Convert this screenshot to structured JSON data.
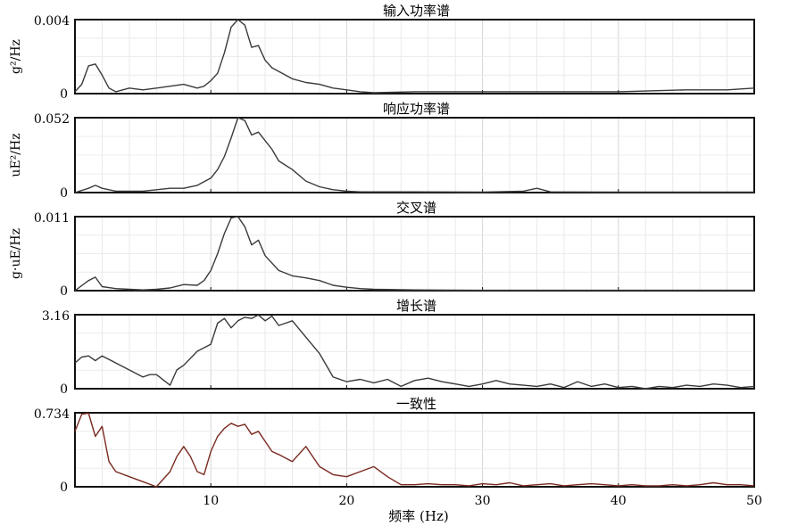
{
  "figure": {
    "xlabel": "频率 (Hz)"
  },
  "chart_data": [
    {
      "type": "line",
      "title": "输入功率谱",
      "ylabel_html": "g²/Hz",
      "ylabel": "g2/Hz",
      "ylim": [
        0,
        0.004
      ],
      "ytick_labels": [
        "0.004",
        "0"
      ],
      "xlim": [
        0,
        50
      ],
      "x_ticks": [
        10,
        20,
        30,
        40,
        50
      ],
      "grid": true,
      "color": "#3a3a3a",
      "x": [
        0,
        0.5,
        1,
        1.5,
        2,
        2.5,
        3,
        4,
        5,
        6,
        7,
        8,
        8.5,
        9,
        9.5,
        10,
        10.5,
        11,
        11.5,
        12,
        12.5,
        13,
        13.5,
        14,
        14.5,
        15,
        16,
        17,
        18,
        19,
        20,
        21,
        22,
        25,
        30,
        35,
        40,
        45,
        48,
        50
      ],
      "y": [
        0.0001,
        0.0005,
        0.0015,
        0.0016,
        0.001,
        0.0003,
        0.0001,
        0.0003,
        0.0002,
        0.0003,
        0.0004,
        0.0005,
        0.0004,
        0.0003,
        0.0004,
        0.0007,
        0.0011,
        0.0022,
        0.0036,
        0.004,
        0.0037,
        0.0025,
        0.0026,
        0.0018,
        0.0014,
        0.0012,
        0.0008,
        0.0006,
        0.0005,
        0.0003,
        0.0002,
        0.0001,
        5e-05,
        0.0001,
        0.0001,
        0.0001,
        0.0001,
        0.0002,
        0.0002,
        0.0003
      ]
    },
    {
      "type": "line",
      "title": "响应功率谱",
      "ylabel_html": "uE²/Hz",
      "ylabel": "uE2/Hz",
      "ylim": [
        0,
        0.052
      ],
      "ytick_labels": [
        "0.052",
        "0"
      ],
      "xlim": [
        0,
        50
      ],
      "x_ticks": [
        10,
        20,
        30,
        40,
        50
      ],
      "grid": true,
      "color": "#3a3a3a",
      "x": [
        0,
        1,
        1.5,
        2,
        3,
        4,
        5,
        6,
        7,
        8,
        9,
        10,
        10.5,
        11,
        11.5,
        12,
        12.5,
        13,
        13.5,
        14,
        14.5,
        15,
        16,
        17,
        18,
        19,
        20,
        21,
        22,
        25,
        30,
        33,
        34,
        35,
        40,
        45,
        50
      ],
      "y": [
        0,
        0.003,
        0.005,
        0.003,
        0.001,
        0.001,
        0.001,
        0.002,
        0.003,
        0.003,
        0.005,
        0.01,
        0.016,
        0.025,
        0.038,
        0.052,
        0.05,
        0.04,
        0.042,
        0.036,
        0.03,
        0.022,
        0.016,
        0.008,
        0.004,
        0.002,
        0.001,
        0.0005,
        0.0005,
        0.0005,
        0.0003,
        0.001,
        0.003,
        0.0005,
        0.0003,
        0.0003,
        0.0003
      ]
    },
    {
      "type": "line",
      "title": "交叉谱",
      "ylabel_html": "g·uE/Hz",
      "ylabel": "g·uE/Hz",
      "ylim": [
        0,
        0.011
      ],
      "ytick_labels": [
        "0.011",
        "0"
      ],
      "xlim": [
        0,
        50
      ],
      "x_ticks": [
        10,
        20,
        30,
        40,
        50
      ],
      "grid": true,
      "color": "#3a3a3a",
      "x": [
        0,
        1,
        1.5,
        2,
        3,
        4,
        5,
        6,
        7,
        8,
        9,
        9.5,
        10,
        10.5,
        11,
        11.5,
        12,
        12.5,
        13,
        13.5,
        14,
        15,
        16,
        17,
        18,
        19,
        20,
        21,
        22,
        25,
        30,
        35,
        40,
        45,
        50
      ],
      "y": [
        0,
        0.0015,
        0.002,
        0.0006,
        0.0003,
        0.0002,
        0.0001,
        0.0002,
        0.0004,
        0.0009,
        0.0008,
        0.0015,
        0.003,
        0.0055,
        0.0085,
        0.0108,
        0.011,
        0.0095,
        0.0068,
        0.0075,
        0.0052,
        0.003,
        0.0022,
        0.0019,
        0.0015,
        0.0008,
        0.0005,
        0.0003,
        0.0002,
        0.0001,
        5e-05,
        5e-05,
        5e-05,
        5e-05,
        5e-05
      ]
    },
    {
      "type": "line",
      "title": "增长谱",
      "ylabel_html": "",
      "ylabel": "",
      "ylim": [
        0,
        3.16
      ],
      "ytick_labels": [
        "3.16",
        "0"
      ],
      "xlim": [
        0,
        50
      ],
      "x_ticks": [
        10,
        20,
        30,
        40,
        50
      ],
      "grid": true,
      "color": "#3a3a3a",
      "x": [
        0,
        0.5,
        1,
        1.5,
        2,
        3,
        4,
        5,
        5.5,
        6,
        7,
        7.5,
        8,
        9,
        10,
        10.5,
        11,
        11.5,
        12,
        12.5,
        13,
        13.5,
        14,
        14.5,
        15,
        15.5,
        16,
        17,
        18,
        19,
        20,
        21,
        22,
        23,
        24,
        25,
        26,
        27,
        28,
        29,
        30,
        31,
        32,
        33,
        34,
        35,
        36,
        37,
        38,
        39,
        40,
        41,
        42,
        43,
        44,
        45,
        46,
        47,
        48,
        49,
        50
      ],
      "y": [
        1.1,
        1.35,
        1.4,
        1.2,
        1.4,
        1.1,
        0.8,
        0.5,
        0.6,
        0.6,
        0.15,
        0.8,
        1.0,
        1.6,
        1.9,
        2.8,
        3.0,
        2.6,
        2.9,
        3.05,
        3.0,
        3.15,
        2.9,
        3.1,
        2.7,
        2.8,
        2.9,
        2.2,
        1.5,
        0.5,
        0.3,
        0.4,
        0.25,
        0.4,
        0.1,
        0.35,
        0.45,
        0.3,
        0.2,
        0.1,
        0.2,
        0.35,
        0.2,
        0.15,
        0.1,
        0.2,
        0.05,
        0.3,
        0.1,
        0.2,
        0.05,
        0.1,
        0.0,
        0.1,
        0.05,
        0.15,
        0.1,
        0.2,
        0.15,
        0.05,
        0.1
      ]
    },
    {
      "type": "line",
      "title": "一致性",
      "ylabel_html": "",
      "ylabel": "",
      "ylim": [
        0,
        0.734
      ],
      "ytick_labels": [
        "0.734",
        "0"
      ],
      "xlim": [
        0,
        50
      ],
      "x_ticks": [
        10,
        20,
        30,
        40,
        50
      ],
      "x_tick_labels": [
        "10",
        "20",
        "30",
        "40",
        "50"
      ],
      "grid": true,
      "color": "#7a2a20",
      "x": [
        0,
        0.5,
        1,
        1.5,
        2,
        2.5,
        3,
        4,
        5,
        6,
        7,
        7.5,
        8,
        8.5,
        9,
        9.5,
        10,
        10.5,
        11,
        11.5,
        12,
        12.5,
        13,
        13.5,
        14,
        14.5,
        15,
        16,
        17,
        18,
        19,
        20,
        21,
        22,
        23,
        24,
        25,
        26,
        27,
        28,
        29,
        30,
        31,
        32,
        33,
        34,
        35,
        36,
        37,
        38,
        39,
        40,
        41,
        42,
        43,
        44,
        45,
        46,
        47,
        48,
        49,
        50
      ],
      "y": [
        0.55,
        0.72,
        0.73,
        0.5,
        0.6,
        0.25,
        0.15,
        0.1,
        0.05,
        0.0,
        0.15,
        0.3,
        0.4,
        0.3,
        0.15,
        0.12,
        0.35,
        0.5,
        0.58,
        0.63,
        0.6,
        0.62,
        0.52,
        0.55,
        0.45,
        0.35,
        0.32,
        0.25,
        0.4,
        0.2,
        0.12,
        0.1,
        0.15,
        0.2,
        0.1,
        0.02,
        0.02,
        0.03,
        0.02,
        0.02,
        0.01,
        0.03,
        0.02,
        0.04,
        0.01,
        0.02,
        0.03,
        0.01,
        0.02,
        0.03,
        0.02,
        0.01,
        0.02,
        0.01,
        0.01,
        0.02,
        0.01,
        0.02,
        0.04,
        0.02,
        0.02,
        0.01
      ]
    }
  ]
}
